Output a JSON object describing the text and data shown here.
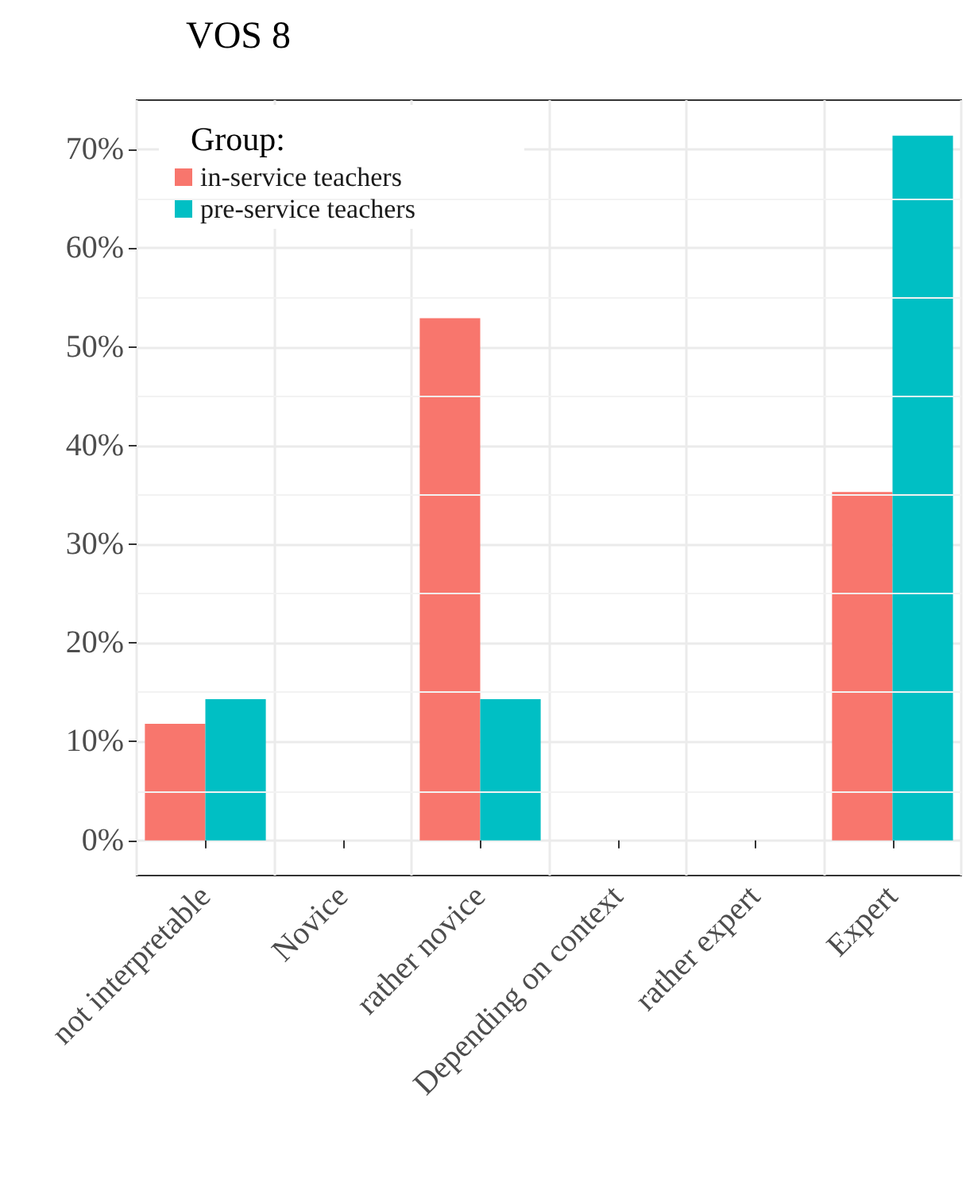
{
  "chart_data": {
    "type": "bar",
    "title": "VOS 8",
    "legend_title": "Group:",
    "categories": [
      "not interpretable",
      "Novice",
      "rather novice",
      "Depending on context",
      "rather expert",
      "Expert"
    ],
    "series": [
      {
        "name": "in-service teachers",
        "color": "#f8766d",
        "values": [
          11.8,
          0,
          52.9,
          0,
          0,
          35.3
        ]
      },
      {
        "name": "pre-service teachers",
        "color": "#00bfc4",
        "values": [
          14.3,
          0,
          14.3,
          0,
          0,
          71.4
        ]
      }
    ],
    "ylim": [
      -3.57,
      75
    ],
    "yticks": [
      {
        "value": 0,
        "label": "0%"
      },
      {
        "value": 10,
        "label": "10%"
      },
      {
        "value": 20,
        "label": "20%"
      },
      {
        "value": 30,
        "label": "30%"
      },
      {
        "value": 40,
        "label": "40%"
      },
      {
        "value": 50,
        "label": "50%"
      },
      {
        "value": 60,
        "label": "60%"
      },
      {
        "value": 70,
        "label": "70%"
      }
    ],
    "grid": true,
    "legend": "top left"
  }
}
